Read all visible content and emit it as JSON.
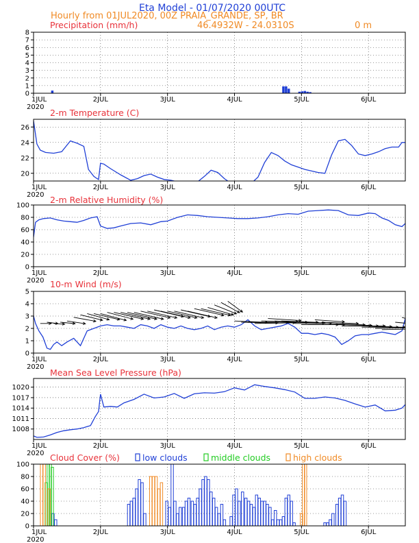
{
  "header": {
    "title": "Eta Model - 01/07/2020 00UTC",
    "subtitle": "Hourly from 01JUL2020, 00Z  PRAIA_GRANDE, SP, BR",
    "coords": "46.4932W - 24.0310S",
    "elevation": "0   m"
  },
  "colors": {
    "series": "#1f3fd6",
    "title_red": "#e8323a",
    "header_blue": "#1f3fd6",
    "header_orange": "#f08a24",
    "low": "#1f3fd6",
    "middle": "#22cc22",
    "high": "#f08a24"
  },
  "chart_data": [
    {
      "type": "bar",
      "title": "Precipitation (mm/h)",
      "xlabel": "",
      "ylabel": "",
      "x_ticks": [
        "1JUL",
        "2JUL",
        "3JUL",
        "4JUL",
        "5JUL",
        "6JUL"
      ],
      "year_label": "2020",
      "xlim": [
        0,
        5.55
      ],
      "ylim": [
        0,
        8
      ],
      "y_ticks": [
        "0",
        "1",
        "2",
        "3",
        "4",
        "5",
        "6",
        "7",
        "8"
      ],
      "x": [
        0.28,
        3.73,
        3.77,
        3.81,
        3.97,
        4.01,
        4.05,
        4.09,
        4.13
      ],
      "values": [
        0.35,
        0.9,
        0.9,
        0.6,
        0.2,
        0.25,
        0.3,
        0.2,
        0.15
      ]
    },
    {
      "type": "line",
      "title": "2-m Temperature (C)",
      "xlabel": "",
      "ylabel": "",
      "x_ticks": [
        "1JUL",
        "2JUL",
        "3JUL",
        "4JUL",
        "5JUL",
        "6JUL"
      ],
      "year_label": "2020",
      "xlim": [
        0,
        5.55
      ],
      "ylim": [
        19,
        27
      ],
      "y_ticks": [
        "20",
        "22",
        "24",
        "26"
      ],
      "x": [
        0,
        0.05,
        0.1,
        0.18,
        0.3,
        0.42,
        0.55,
        0.65,
        0.75,
        0.82,
        0.9,
        0.95,
        0.97,
        1.0,
        1.05,
        1.15,
        1.3,
        1.45,
        1.55,
        1.65,
        1.75,
        1.85,
        1.95,
        2.05,
        2.15,
        2.25,
        2.35,
        2.45,
        2.55,
        2.65,
        2.75,
        2.85,
        2.95,
        3.05,
        3.15,
        3.25,
        3.35,
        3.45,
        3.55,
        3.65,
        3.75,
        3.85,
        3.95,
        4.05,
        4.15,
        4.25,
        4.35,
        4.45,
        4.55,
        4.65,
        4.75,
        4.85,
        4.95,
        5.05,
        5.15,
        5.25,
        5.35,
        5.45,
        5.5,
        5.55
      ],
      "values": [
        26.8,
        23.8,
        23.0,
        22.7,
        22.6,
        22.8,
        24.2,
        23.9,
        23.5,
        20.5,
        19.6,
        19.3,
        19.2,
        21.3,
        21.2,
        20.6,
        19.8,
        19.1,
        19.3,
        19.7,
        19.9,
        19.5,
        19.2,
        19.1,
        18.9,
        18.8,
        18.7,
        18.9,
        19.6,
        20.4,
        20.1,
        19.3,
        18.7,
        18.6,
        18.5,
        18.7,
        19.5,
        21.4,
        22.7,
        22.3,
        21.6,
        21.1,
        20.8,
        20.5,
        20.3,
        20.1,
        20.0,
        22.4,
        24.2,
        24.4,
        23.6,
        22.5,
        22.3,
        22.5,
        22.8,
        23.2,
        23.4,
        23.4,
        24.0,
        24.0
      ]
    },
    {
      "type": "line",
      "title": "2-m Relative Humidity (%)",
      "xlabel": "",
      "ylabel": "",
      "x_ticks": [
        "1JUL",
        "2JUL",
        "3JUL",
        "4JUL",
        "5JUL",
        "6JUL"
      ],
      "year_label": "2020",
      "xlim": [
        0,
        5.55
      ],
      "ylim": [
        0,
        100
      ],
      "y_ticks": [
        "0",
        "20",
        "40",
        "60",
        "80",
        "100"
      ],
      "x": [
        0,
        0.03,
        0.08,
        0.15,
        0.25,
        0.35,
        0.45,
        0.55,
        0.65,
        0.75,
        0.85,
        0.95,
        1.0,
        1.1,
        1.2,
        1.3,
        1.45,
        1.6,
        1.75,
        1.9,
        2.0,
        2.15,
        2.3,
        2.45,
        2.6,
        2.75,
        2.9,
        3.05,
        3.2,
        3.35,
        3.5,
        3.65,
        3.8,
        3.95,
        4.1,
        4.25,
        4.4,
        4.55,
        4.7,
        4.85,
        5.0,
        5.1,
        5.2,
        5.3,
        5.4,
        5.5,
        5.55
      ],
      "values": [
        48,
        72,
        76,
        78,
        79,
        76,
        74,
        73,
        72,
        75,
        79,
        81,
        66,
        62,
        63,
        66,
        70,
        71,
        68,
        73,
        74,
        80,
        84,
        83,
        81,
        80,
        79,
        78,
        78,
        79,
        81,
        84,
        86,
        85,
        90,
        91,
        92,
        91,
        84,
        83,
        87,
        86,
        79,
        75,
        68,
        65,
        70
      ]
    },
    {
      "type": "line",
      "title": "10-m Wind (m/s)",
      "xlabel": "",
      "ylabel": "",
      "x_ticks": [
        "1JUL",
        "2JUL",
        "3JUL",
        "4JUL",
        "5JUL",
        "6JUL"
      ],
      "year_label": "2020",
      "xlim": [
        0,
        5.55
      ],
      "ylim": [
        0,
        5
      ],
      "y_ticks": [
        "0",
        "1",
        "2",
        "3",
        "4",
        "5"
      ],
      "x": [
        0,
        0.03,
        0.08,
        0.14,
        0.2,
        0.25,
        0.3,
        0.35,
        0.42,
        0.5,
        0.6,
        0.7,
        0.8,
        0.9,
        1.0,
        1.1,
        1.2,
        1.3,
        1.4,
        1.5,
        1.6,
        1.7,
        1.8,
        1.9,
        2.0,
        2.1,
        2.2,
        2.3,
        2.4,
        2.5,
        2.6,
        2.7,
        2.8,
        2.9,
        3.0,
        3.1,
        3.2,
        3.3,
        3.4,
        3.5,
        3.6,
        3.7,
        3.8,
        3.9,
        4.0,
        4.1,
        4.2,
        4.3,
        4.4,
        4.5,
        4.6,
        4.7,
        4.8,
        4.9,
        5.0,
        5.1,
        5.2,
        5.3,
        5.4,
        5.5,
        5.55
      ],
      "values": [
        3.0,
        2.4,
        1.8,
        1.3,
        0.4,
        0.3,
        0.7,
        0.9,
        0.6,
        0.9,
        1.2,
        0.6,
        1.8,
        2.0,
        2.2,
        2.3,
        2.2,
        2.2,
        2.1,
        2.0,
        2.3,
        2.2,
        2.0,
        2.3,
        2.1,
        2.0,
        2.2,
        2.0,
        1.9,
        2.0,
        2.2,
        1.9,
        2.1,
        2.2,
        2.1,
        2.3,
        2.7,
        2.2,
        1.9,
        2.0,
        2.1,
        2.2,
        2.4,
        2.1,
        1.6,
        1.6,
        1.5,
        1.6,
        1.5,
        1.3,
        0.7,
        1.0,
        1.4,
        1.5,
        1.5,
        1.6,
        1.7,
        1.6,
        1.5,
        1.8,
        2.8
      ],
      "vectors": {
        "x": [
          0.0,
          0.1,
          0.2,
          0.3,
          0.4,
          0.5,
          0.6,
          0.7,
          0.8,
          0.9,
          1.0,
          1.1,
          1.2,
          1.3,
          1.4,
          1.5,
          1.6,
          1.7,
          1.8,
          1.9,
          2.0,
          2.1,
          2.2,
          2.3,
          2.4,
          2.5,
          2.6,
          2.7,
          2.8,
          2.9,
          3.0,
          3.1,
          3.2,
          3.3,
          3.4,
          3.5,
          3.6,
          3.7,
          3.8,
          3.9,
          4.0,
          4.1,
          4.2,
          4.3,
          4.4,
          4.5,
          4.6,
          4.7,
          4.8,
          4.9,
          5.0,
          5.1,
          5.2,
          5.3,
          5.4,
          5.5
        ],
        "y": [
          2.8,
          2.4,
          2.5,
          2.4,
          2.5,
          2.6,
          2.9,
          3.1,
          3.2,
          3.2,
          3.2,
          3.3,
          3.3,
          3.3,
          3.3,
          3.3,
          3.4,
          3.4,
          3.5,
          3.4,
          3.4,
          3.4,
          3.5,
          3.4,
          3.6,
          3.6,
          3.7,
          3.9,
          4.1,
          4.2,
          2.6,
          2.5,
          2.5,
          2.4,
          2.6,
          2.8,
          2.6,
          2.6,
          2.5,
          2.4,
          2.3,
          2.3,
          2.7,
          2.5,
          2.4,
          2.3,
          2.2,
          2.2,
          2.2,
          2.1,
          2.1,
          2.0,
          1.9,
          2.1,
          2.5,
          2.9
        ],
        "dx": [
          -0.3,
          0.3,
          0.3,
          0.3,
          0.4,
          0.5,
          0.6,
          0.6,
          0.6,
          0.7,
          0.7,
          0.7,
          0.8,
          0.8,
          0.8,
          0.8,
          0.8,
          0.8,
          0.8,
          0.8,
          0.8,
          0.8,
          0.8,
          0.8,
          0.8,
          0.8,
          0.7,
          0.6,
          0.5,
          0.4,
          0.9,
          1.0,
          1.1,
          1.1,
          1.0,
          0.9,
          0.9,
          1.0,
          1.0,
          1.0,
          1.0,
          1.0,
          0.8,
          1.0,
          1.0,
          1.0,
          1.0,
          1.0,
          1.0,
          1.0,
          1.0,
          1.0,
          1.0,
          1.0,
          0.8,
          0.5
        ],
        "dy": [
          -0.9,
          0.0,
          -0.2,
          -0.1,
          -0.2,
          -0.4,
          -0.6,
          -0.8,
          -0.9,
          -0.9,
          -1.0,
          -1.0,
          -1.0,
          -1.0,
          -1.0,
          -1.0,
          -1.0,
          -1.0,
          -1.0,
          -1.0,
          -1.0,
          -1.0,
          -1.0,
          -1.0,
          -1.0,
          -1.0,
          -1.1,
          -1.3,
          -1.5,
          -1.6,
          -0.2,
          -0.1,
          0.0,
          0.1,
          -0.1,
          -0.3,
          -0.2,
          -0.2,
          -0.1,
          0.0,
          0.0,
          0.0,
          -0.3,
          -0.2,
          -0.2,
          -0.1,
          0.0,
          0.0,
          -0.1,
          0.0,
          0.0,
          0.1,
          0.1,
          -0.1,
          -0.4,
          -0.9
        ]
      }
    },
    {
      "type": "line",
      "title": "Mean Sea Level Pressure (hPa)",
      "xlabel": "",
      "ylabel": "",
      "x_ticks": [
        "1JUL",
        "2JUL",
        "3JUL",
        "4JUL",
        "5JUL",
        "6JUL"
      ],
      "year_label": "2020",
      "xlim": [
        0,
        5.55
      ],
      "ylim": [
        1005,
        1022.5
      ],
      "y_ticks": [
        "1008",
        "1011",
        "1014",
        "1017",
        "1020"
      ],
      "x": [
        0,
        0.05,
        0.15,
        0.25,
        0.35,
        0.45,
        0.55,
        0.65,
        0.75,
        0.85,
        0.92,
        0.97,
        1.0,
        1.05,
        1.15,
        1.25,
        1.35,
        1.5,
        1.65,
        1.8,
        1.95,
        2.1,
        2.25,
        2.4,
        2.55,
        2.7,
        2.85,
        3.0,
        3.15,
        3.3,
        3.45,
        3.6,
        3.75,
        3.9,
        4.05,
        4.2,
        4.35,
        4.5,
        4.65,
        4.8,
        4.95,
        5.1,
        5.25,
        5.4,
        5.5,
        5.55
      ],
      "values": [
        1006,
        1005.6,
        1005.7,
        1006.3,
        1007,
        1007.5,
        1007.8,
        1008,
        1008.4,
        1009,
        1011.5,
        1013,
        1018,
        1014.3,
        1014.5,
        1014.3,
        1015.5,
        1016.5,
        1018,
        1016.9,
        1017.2,
        1018.2,
        1016.8,
        1018.1,
        1018.4,
        1018.3,
        1018.7,
        1019.8,
        1019.2,
        1020.7,
        1020.2,
        1019.8,
        1019.3,
        1018.6,
        1016.8,
        1016.8,
        1017.2,
        1016.9,
        1016.2,
        1015.2,
        1014.3,
        1014.9,
        1013.2,
        1013.4,
        1014,
        1015
      ]
    },
    {
      "type": "bar",
      "title": "Cloud Cover (%)",
      "xlabel": "",
      "ylabel": "",
      "x_ticks": [
        "1JUL",
        "2JUL",
        "3JUL",
        "4JUL",
        "5JUL",
        "6JUL"
      ],
      "year_label": "2020",
      "xlim": [
        0,
        5.55
      ],
      "ylim": [
        0,
        100
      ],
      "y_ticks": [
        "0",
        "20",
        "40",
        "60",
        "80",
        "100"
      ],
      "legend": [
        "low clouds",
        "middle clouds",
        "high clouds"
      ],
      "series": [
        {
          "name": "low clouds",
          "x": [
            0.29,
            0.33,
            1.42,
            1.46,
            1.5,
            1.54,
            1.58,
            1.62,
            1.66,
            1.99,
            2.03,
            2.07,
            2.11,
            2.15,
            2.19,
            2.24,
            2.28,
            2.32,
            2.37,
            2.41,
            2.45,
            2.49,
            2.53,
            2.57,
            2.61,
            2.65,
            2.69,
            2.73,
            2.77,
            2.81,
            2.85,
            2.95,
            2.99,
            3.03,
            3.07,
            3.12,
            3.17,
            3.21,
            3.25,
            3.29,
            3.33,
            3.37,
            3.41,
            3.45,
            3.49,
            3.53,
            3.57,
            3.61,
            3.65,
            3.69,
            3.73,
            3.77,
            3.81,
            3.85,
            3.89,
            4.35,
            4.39,
            4.43,
            4.47,
            4.53,
            4.57,
            4.61,
            4.65
          ],
          "values": [
            20,
            10,
            35,
            40,
            45,
            60,
            75,
            70,
            20,
            40,
            30,
            100,
            40,
            20,
            30,
            30,
            40,
            45,
            40,
            35,
            45,
            60,
            75,
            80,
            75,
            55,
            45,
            30,
            20,
            35,
            10,
            15,
            50,
            60,
            40,
            55,
            45,
            40,
            35,
            30,
            50,
            45,
            40,
            40,
            35,
            30,
            10,
            25,
            10,
            10,
            15,
            45,
            50,
            40,
            5,
            5,
            5,
            10,
            20,
            35,
            45,
            50,
            40
          ]
        },
        {
          "name": "middle clouds",
          "x": [
            0.19,
            0.22,
            0.25,
            0.28
          ],
          "values": [
            70,
            100,
            100,
            95
          ]
        },
        {
          "name": "high clouds",
          "x": [
            0.12,
            0.16,
            0.23,
            1.75,
            1.79,
            1.83,
            1.87,
            1.91,
            4.0,
            4.03,
            4.06
          ],
          "values": [
            100,
            100,
            60,
            80,
            80,
            80,
            60,
            70,
            20,
            100,
            100
          ]
        }
      ]
    }
  ]
}
